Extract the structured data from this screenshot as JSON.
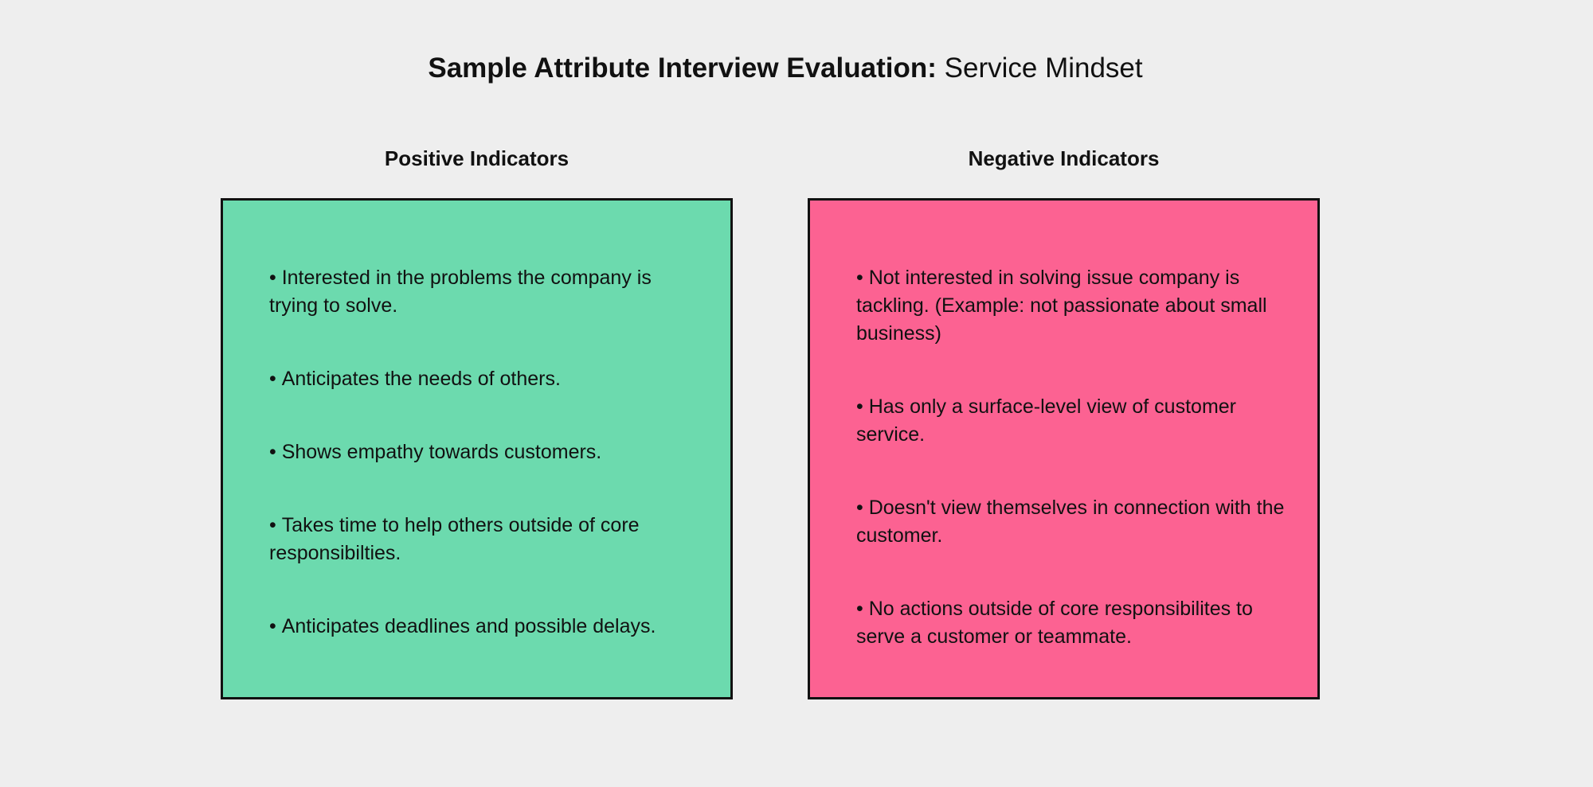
{
  "header": {
    "title_bold": "Sample Attribute Interview Evaluation:",
    "title_regular": "Service Mindset"
  },
  "columns": [
    {
      "heading": "Positive Indicators",
      "items": [
        "Interested in the problems the company is trying to solve.",
        "Anticipates the needs of others.",
        "Shows empathy towards customers.",
        "Takes time to help others outside of core responsibilties.",
        "Anticipates deadlines and possible delays."
      ]
    },
    {
      "heading": "Negative Indicators",
      "items": [
        "Not interested in solving issue company is tackling. (Example: not passionate about small business)",
        "Has only a surface-level view of customer service.",
        "Doesn't view themselves in connection with the customer.",
        "No actions outside of core responsibilites to serve a customer or teammate."
      ]
    }
  ]
}
